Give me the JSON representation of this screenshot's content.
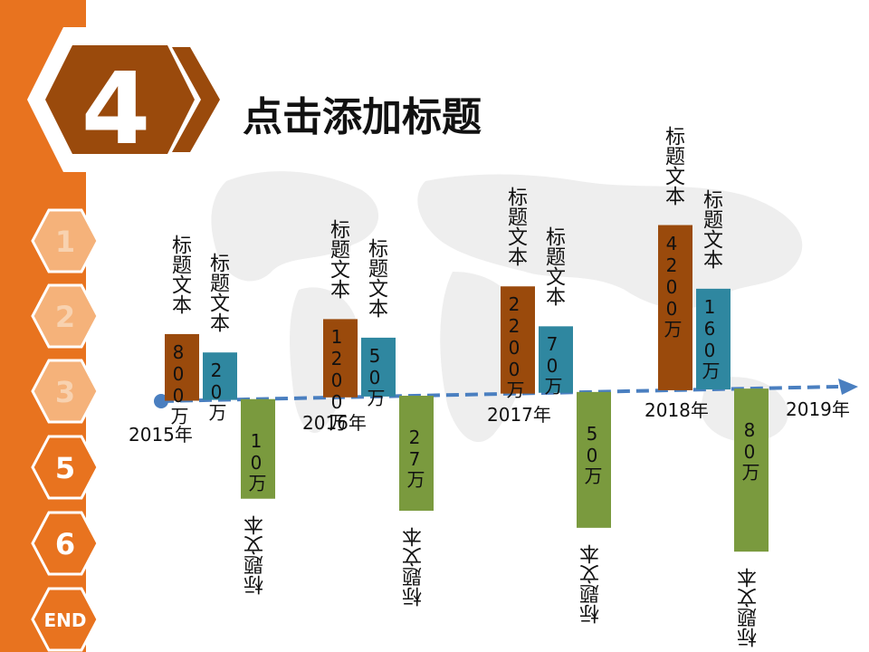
{
  "slide": {
    "number": "4",
    "title": "点击添加标题"
  },
  "nav": {
    "items": [
      {
        "label": "1",
        "state": "inactive"
      },
      {
        "label": "2",
        "state": "inactive"
      },
      {
        "label": "3",
        "state": "inactive"
      },
      {
        "label": "5",
        "state": "active"
      },
      {
        "label": "6",
        "state": "active"
      },
      {
        "label": "END",
        "state": "active"
      }
    ]
  },
  "colors": {
    "orange": "#e8731f",
    "brown": "#9a4a0c",
    "teal": "#2f87a0",
    "green": "#7a9a3e",
    "timeline": "#4a7fc0",
    "hex_inactive_fill": "#f5b27a",
    "hex_inactive_text": "#f8d2b0"
  },
  "chart_data": {
    "type": "bar",
    "categories": [
      "2015年",
      "2016年",
      "2017年",
      "2018年"
    ],
    "end_label": "2019年",
    "series": [
      {
        "color": "#9a4a0c",
        "values": [
          800,
          1200,
          2200,
          4200
        ],
        "labels": [
          "800万",
          "1200万",
          "2200万",
          "4200万"
        ],
        "caption": "标题文本",
        "direction": "up"
      },
      {
        "color": "#2f87a0",
        "values": [
          20,
          50,
          70,
          160
        ],
        "labels": [
          "20万",
          "50万",
          "70万",
          "160万"
        ],
        "caption": "标题文本",
        "direction": "up"
      },
      {
        "color": "#7a9a3e",
        "values": [
          10,
          27,
          50,
          80
        ],
        "labels": [
          "10万",
          "27万",
          "50万",
          "80万"
        ],
        "caption": "标题文本",
        "direction": "down"
      }
    ]
  }
}
